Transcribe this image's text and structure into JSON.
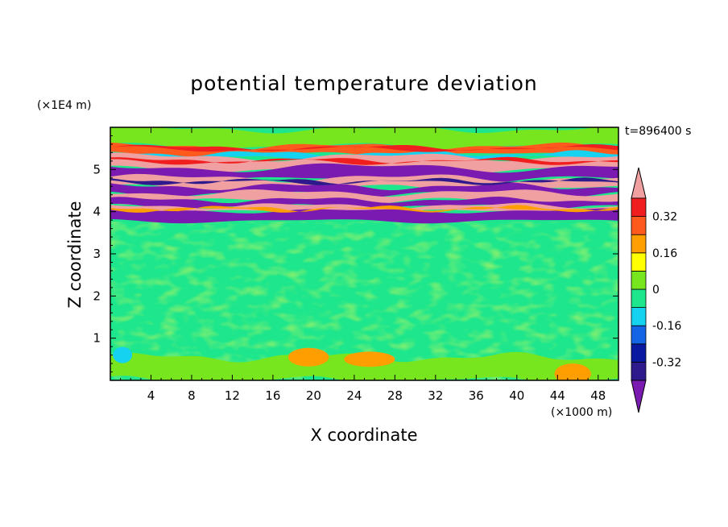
{
  "chart_data": {
    "type": "heatmap",
    "title": "potential temperature deviation",
    "xlabel": "X coordinate",
    "ylabel": "Z coordinate",
    "x_unit": "(×1000 m)",
    "y_unit": "(×1E4 m)",
    "time_label": "t=896400 s",
    "xlim": [
      0,
      50
    ],
    "ylim": [
      0,
      6
    ],
    "x_ticks": [
      "4",
      "8",
      "12",
      "16",
      "20",
      "24",
      "28",
      "32",
      "36",
      "40",
      "44",
      "48"
    ],
    "y_ticks": [
      "1",
      "2",
      "3",
      "4",
      "5"
    ],
    "x_tick_values": [
      4,
      8,
      12,
      16,
      20,
      24,
      28,
      32,
      36,
      40,
      44,
      48
    ],
    "y_tick_values": [
      1,
      2,
      3,
      4,
      5
    ],
    "colorbar": {
      "levels": [
        -0.4,
        -0.32,
        -0.24,
        -0.16,
        -0.08,
        0,
        0.08,
        0.16,
        0.24,
        0.32,
        0.4
      ],
      "labels": [
        "0.32",
        "0.16",
        "0",
        "-0.16",
        "-0.32"
      ],
      "label_values": [
        0.32,
        0.16,
        0,
        -0.16,
        -0.32
      ],
      "colors_low_to_high": [
        "#2e1a8c",
        "#0a1aa0",
        "#1464e6",
        "#14d2f0",
        "#1ee68c",
        "#78e61e",
        "#ffff00",
        "#ff9e00",
        "#ff5a1e",
        "#f01e1e"
      ],
      "under_color": "#7a1ab0",
      "over_color": "#f0a0a0"
    },
    "field_bands": [
      {
        "z_range": [
          0,
          0.6
        ],
        "description": "mostly near zero with small positive patches",
        "value": 0.02
      },
      {
        "z_range": [
          0.6,
          3.7
        ],
        "description": "near-zero noise",
        "value": 0.0
      },
      {
        "z_range": [
          3.75,
          4.0
        ],
        "description": "strong negative band",
        "value": -0.42
      },
      {
        "z_range": [
          4.0,
          4.5
        ],
        "description": "alternating strong positive / negative",
        "value": 0.42
      },
      {
        "z_range": [
          4.5,
          5.0
        ],
        "description": "strong negative layers",
        "value": -0.42
      },
      {
        "z_range": [
          5.0,
          5.5
        ],
        "description": "strong positive layer",
        "value": 0.42
      },
      {
        "z_range": [
          5.5,
          6.0
        ],
        "description": "near zero with red/blue streaks",
        "value": 0.05
      }
    ]
  }
}
